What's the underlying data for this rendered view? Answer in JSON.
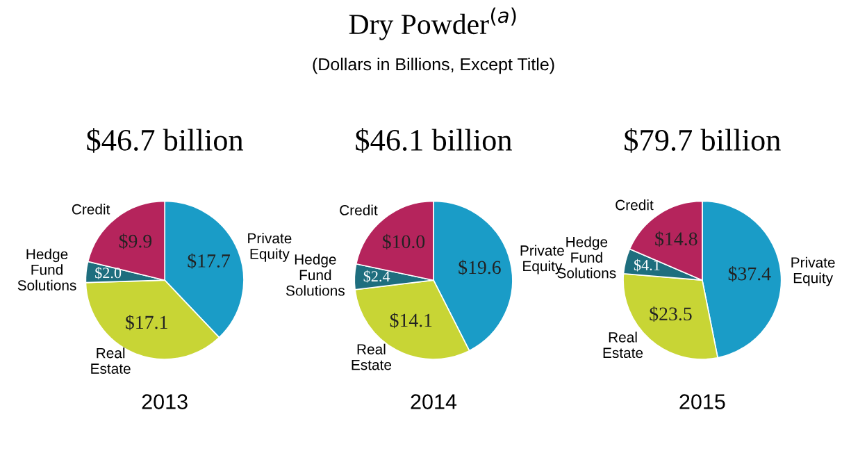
{
  "chart_data": [
    {
      "type": "other",
      "title": "Dry Powder$^{(a)}$",
      "subtitle": "(Dollars in Billions, Except Title)"
    },
    {
      "type": "pie",
      "title": "$46.7 billion",
      "xlabel": "2013",
      "categories": [
        "Private\nEquity",
        "Real\nEstate",
        "Hedge\nFund\nSolutions",
        "Credit"
      ],
      "values": [
        17.7,
        17.1,
        2.0,
        9.9
      ],
      "value_labels": [
        "$17.7",
        "$17.1",
        "$2.0",
        "$9.9"
      ],
      "colors": [
        "#1a9cc7",
        "#c8d535",
        "#1e6e7e",
        "#b5245c"
      ]
    },
    {
      "type": "pie",
      "title": "$46.1 billion",
      "xlabel": "2014",
      "categories": [
        "Private\nEquity",
        "Real\nEstate",
        "Hedge\nFund\nSolutions",
        "Credit"
      ],
      "values": [
        19.6,
        14.1,
        2.4,
        10.0
      ],
      "value_labels": [
        "$19.6",
        "$14.1",
        "$2.4",
        "$10.0"
      ],
      "colors": [
        "#1a9cc7",
        "#c8d535",
        "#1e6e7e",
        "#b5245c"
      ]
    },
    {
      "type": "pie",
      "title": "$79.7 billion",
      "xlabel": "2015",
      "categories": [
        "Private\nEquity",
        "Real\nEstate",
        "Hedge\nFund\nSolutions",
        "Credit"
      ],
      "values": [
        37.4,
        23.5,
        4.1,
        14.8
      ],
      "value_labels": [
        "$37.4",
        "$23.5",
        "$4.1",
        "$14.8"
      ],
      "colors": [
        "#1a9cc7",
        "#c8d535",
        "#1e6e7e",
        "#b5245c"
      ]
    }
  ]
}
